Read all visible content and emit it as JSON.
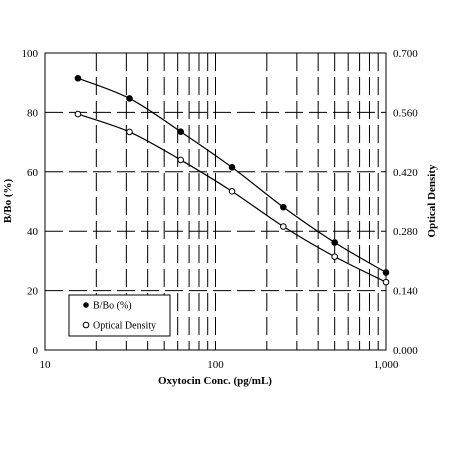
{
  "chart_data": {
    "type": "line",
    "xlabel": "Oxytocin Conc. (pg/mL)",
    "ylabel_left": "B/Bo (%)",
    "ylabel_right": "Optical Density",
    "x_scale": "log",
    "xlim": [
      10,
      1000
    ],
    "ylim_left": [
      0,
      100
    ],
    "ylim_right": [
      0,
      0.7
    ],
    "x_tick_labels": [
      "10",
      "100",
      "1,000"
    ],
    "y_left_tick_labels": [
      "0",
      "20",
      "40",
      "60",
      "80",
      "100"
    ],
    "y_right_tick_labels": [
      "0.000",
      "0.140",
      "0.280",
      "0.420",
      "0.560",
      "0.700"
    ],
    "grid": true,
    "legend_position": "bottom-left",
    "x": [
      15.6,
      31.3,
      62.5,
      125,
      250,
      500,
      1000
    ],
    "series": [
      {
        "name": "B/Bo (%)",
        "axis": "left",
        "marker": "filled-circle",
        "values": [
          91.5,
          84.7,
          73.5,
          61.5,
          48.1,
          36.2,
          26.1
        ]
      },
      {
        "name": "Optical Density",
        "axis": "right",
        "marker": "open-circle",
        "values": [
          0.556,
          0.514,
          0.448,
          0.374,
          0.291,
          0.22,
          0.16
        ]
      }
    ]
  }
}
